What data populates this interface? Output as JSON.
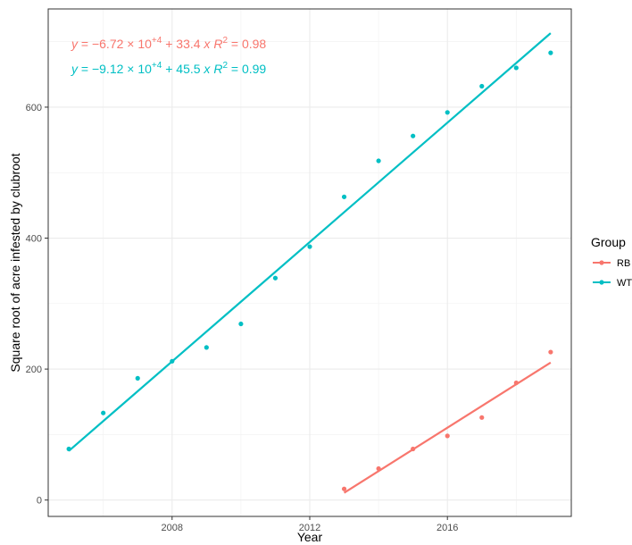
{
  "chart_data": {
    "type": "scatter",
    "xlabel": "Year",
    "ylabel": "Square root of acre infested by clubroot",
    "xlim": [
      2004.4,
      2019.6
    ],
    "ylim": [
      -25,
      750
    ],
    "x_ticks": [
      {
        "value": 2008,
        "label": "2008"
      },
      {
        "value": 2012,
        "label": "2012"
      },
      {
        "value": 2016,
        "label": "2016"
      }
    ],
    "y_ticks": [
      {
        "value": 0,
        "label": "0"
      },
      {
        "value": 200,
        "label": "200"
      },
      {
        "value": 400,
        "label": "400"
      },
      {
        "value": 600,
        "label": "600"
      }
    ],
    "grid": true,
    "legend": {
      "title": "Group",
      "placement": "right"
    },
    "series": [
      {
        "name": "RB",
        "color": "#F8766D",
        "points": [
          {
            "x": 2013,
            "y": 17
          },
          {
            "x": 2014,
            "y": 48
          },
          {
            "x": 2015,
            "y": 78
          },
          {
            "x": 2016,
            "y": 98
          },
          {
            "x": 2017,
            "y": 126
          },
          {
            "x": 2018,
            "y": 179
          },
          {
            "x": 2019,
            "y": 226
          }
        ],
        "fit": {
          "x0": 2013,
          "y0": 11,
          "x1": 2019,
          "y1": 210
        },
        "equation": {
          "lhs": "y",
          "eq": " = −",
          "coef": "6.72",
          "times": " × 10",
          "exp": "+4",
          "rest": " + 33.4 ",
          "var": "x",
          "r": "R",
          "r_exp": "2",
          "r_val": " = 0.98"
        }
      },
      {
        "name": "WT",
        "color": "#00BFC4",
        "points": [
          {
            "x": 2005,
            "y": 78
          },
          {
            "x": 2006,
            "y": 133
          },
          {
            "x": 2007,
            "y": 186
          },
          {
            "x": 2008,
            "y": 212
          },
          {
            "x": 2009,
            "y": 233
          },
          {
            "x": 2010,
            "y": 269
          },
          {
            "x": 2011,
            "y": 339
          },
          {
            "x": 2012,
            "y": 387
          },
          {
            "x": 2013,
            "y": 463
          },
          {
            "x": 2014,
            "y": 518
          },
          {
            "x": 2015,
            "y": 556
          },
          {
            "x": 2016,
            "y": 592
          },
          {
            "x": 2017,
            "y": 632
          },
          {
            "x": 2018,
            "y": 660
          },
          {
            "x": 2019,
            "y": 683
          }
        ],
        "fit": {
          "x0": 2005,
          "y0": 75,
          "x1": 2019,
          "y1": 713
        },
        "equation": {
          "lhs": "y",
          "eq": " = −",
          "coef": "9.12",
          "times": " × 10",
          "exp": "+4",
          "rest": " + 45.5 ",
          "var": "x",
          "r": "R",
          "r_exp": "2",
          "r_val": " = 0.99"
        }
      }
    ]
  }
}
